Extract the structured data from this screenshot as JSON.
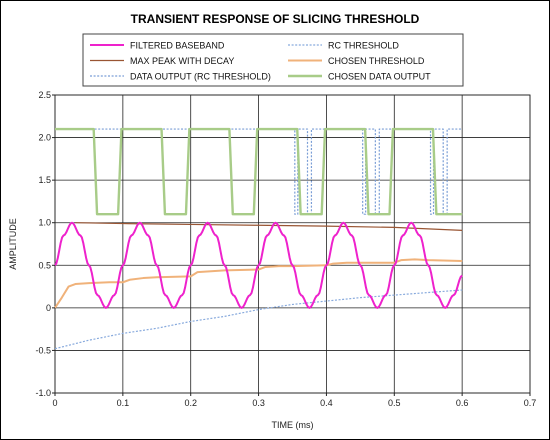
{
  "chart_data": {
    "type": "line",
    "title": "TRANSIENT RESPONSE OF SLICING THRESHOLD",
    "xlabel": "TIME (ms)",
    "ylabel": "AMPLITUDE",
    "xlim": [
      0,
      0.7
    ],
    "ylim": [
      -1.0,
      2.5
    ],
    "xticks": [
      0,
      0.1,
      0.2,
      0.3,
      0.4,
      0.5,
      0.6,
      0.7
    ],
    "yticks": [
      -1.0,
      -0.5,
      0,
      0.5,
      1.0,
      1.5,
      2.0,
      2.5
    ],
    "xtick_labels": [
      "0",
      "0.1",
      "0.2",
      "0.3",
      "0.4",
      "0.5",
      "0.6",
      "0.7"
    ],
    "ytick_labels": [
      "-1.0",
      "-0.5",
      "0",
      "0.5",
      "1.0",
      "1.5",
      "2.0",
      "2.5"
    ],
    "grid": true,
    "legend_position": "top",
    "series": [
      {
        "name": "FILTERED BASEBAND",
        "color": "#ee22cc",
        "style": "solid",
        "x": [
          0,
          0.0125,
          0.025,
          0.0375,
          0.05,
          0.0625,
          0.075,
          0.0875,
          0.1,
          0.1125,
          0.125,
          0.1375,
          0.15,
          0.1625,
          0.175,
          0.1875,
          0.2,
          0.2125,
          0.225,
          0.2375,
          0.25,
          0.2625,
          0.275,
          0.2875,
          0.3,
          0.3125,
          0.325,
          0.3375,
          0.35,
          0.3625,
          0.375,
          0.3875,
          0.4,
          0.4125,
          0.425,
          0.4375,
          0.45,
          0.4625,
          0.475,
          0.4875,
          0.5,
          0.5125,
          0.525,
          0.5375,
          0.55,
          0.5625,
          0.575,
          0.5875,
          0.6
        ],
        "y": [
          0.5,
          0.85,
          1.0,
          0.85,
          0.5,
          0.15,
          0.0,
          0.15,
          0.5,
          0.85,
          1.0,
          0.85,
          0.5,
          0.15,
          0.0,
          0.15,
          0.5,
          0.85,
          1.0,
          0.85,
          0.5,
          0.15,
          0.0,
          0.15,
          0.5,
          0.85,
          1.0,
          0.85,
          0.5,
          0.15,
          0.0,
          0.15,
          0.5,
          0.85,
          1.0,
          0.85,
          0.5,
          0.15,
          0.0,
          0.15,
          0.5,
          0.85,
          1.0,
          0.85,
          0.5,
          0.15,
          0.0,
          0.15,
          0.38
        ]
      },
      {
        "name": "RC THRESHOLD",
        "color": "#88aadd",
        "style": "dotted",
        "x": [
          0,
          0.05,
          0.1,
          0.15,
          0.2,
          0.25,
          0.3,
          0.35,
          0.4,
          0.45,
          0.5,
          0.55,
          0.6
        ],
        "y": [
          -0.48,
          -0.38,
          -0.3,
          -0.24,
          -0.16,
          -0.1,
          -0.02,
          0.04,
          0.08,
          0.12,
          0.15,
          0.18,
          0.21
        ]
      },
      {
        "name": "MAX PEAK WITH DECAY",
        "color": "#995533",
        "style": "solid",
        "x": [
          0.03,
          0.1,
          0.2,
          0.3,
          0.4,
          0.5,
          0.6
        ],
        "y": [
          1.0,
          0.99,
          0.98,
          0.97,
          0.96,
          0.945,
          0.91
        ]
      },
      {
        "name": "CHOSEN THRESHOLD",
        "color": "#f0b27a",
        "style": "solid",
        "x": [
          0,
          0.01,
          0.02,
          0.03,
          0.05,
          0.08,
          0.1,
          0.11,
          0.13,
          0.15,
          0.2,
          0.21,
          0.23,
          0.25,
          0.3,
          0.31,
          0.33,
          0.35,
          0.4,
          0.41,
          0.43,
          0.45,
          0.5,
          0.51,
          0.53,
          0.55,
          0.6
        ],
        "y": [
          0.0,
          0.12,
          0.25,
          0.28,
          0.29,
          0.3,
          0.3,
          0.33,
          0.35,
          0.36,
          0.37,
          0.42,
          0.43,
          0.44,
          0.45,
          0.48,
          0.49,
          0.49,
          0.5,
          0.52,
          0.53,
          0.53,
          0.53,
          0.56,
          0.57,
          0.56,
          0.55
        ]
      },
      {
        "name": "DATA OUTPUT (RC THRESHOLD)",
        "color": "#7a9ed6",
        "style": "dotted",
        "x": [
          0,
          0.05,
          0.05,
          0.3534,
          0.3534,
          0.3578,
          0.3578,
          0.3721,
          0.3721,
          0.3779,
          0.3779,
          0.4534,
          0.4534,
          0.4578,
          0.4578,
          0.4721,
          0.4721,
          0.4779,
          0.4779,
          0.5534,
          0.5534,
          0.5578,
          0.5578,
          0.5721,
          0.5721,
          0.5779,
          0.5779,
          0.6
        ],
        "y": [
          2.1,
          2.1,
          2.1,
          2.1,
          1.1,
          1.1,
          2.1,
          2.1,
          1.1,
          1.1,
          2.1,
          2.1,
          1.1,
          1.1,
          2.1,
          2.1,
          1.1,
          1.1,
          2.1,
          2.1,
          1.1,
          1.1,
          2.1,
          2.1,
          1.1,
          1.1,
          2.1,
          2.1
        ]
      },
      {
        "name": "CHOSEN DATA OUTPUT",
        "color": "#a8cc88",
        "style": "solid",
        "x": [
          0,
          0.057,
          0.062,
          0.093,
          0.098,
          0.157,
          0.162,
          0.193,
          0.198,
          0.257,
          0.262,
          0.293,
          0.298,
          0.357,
          0.362,
          0.393,
          0.398,
          0.457,
          0.462,
          0.493,
          0.498,
          0.557,
          0.562,
          0.6
        ],
        "y": [
          2.1,
          2.1,
          1.1,
          1.1,
          2.1,
          2.1,
          1.1,
          1.1,
          2.1,
          2.1,
          1.1,
          1.1,
          2.1,
          2.1,
          1.1,
          1.1,
          2.1,
          2.1,
          1.1,
          1.1,
          2.1,
          2.1,
          1.1,
          1.1
        ]
      }
    ]
  }
}
